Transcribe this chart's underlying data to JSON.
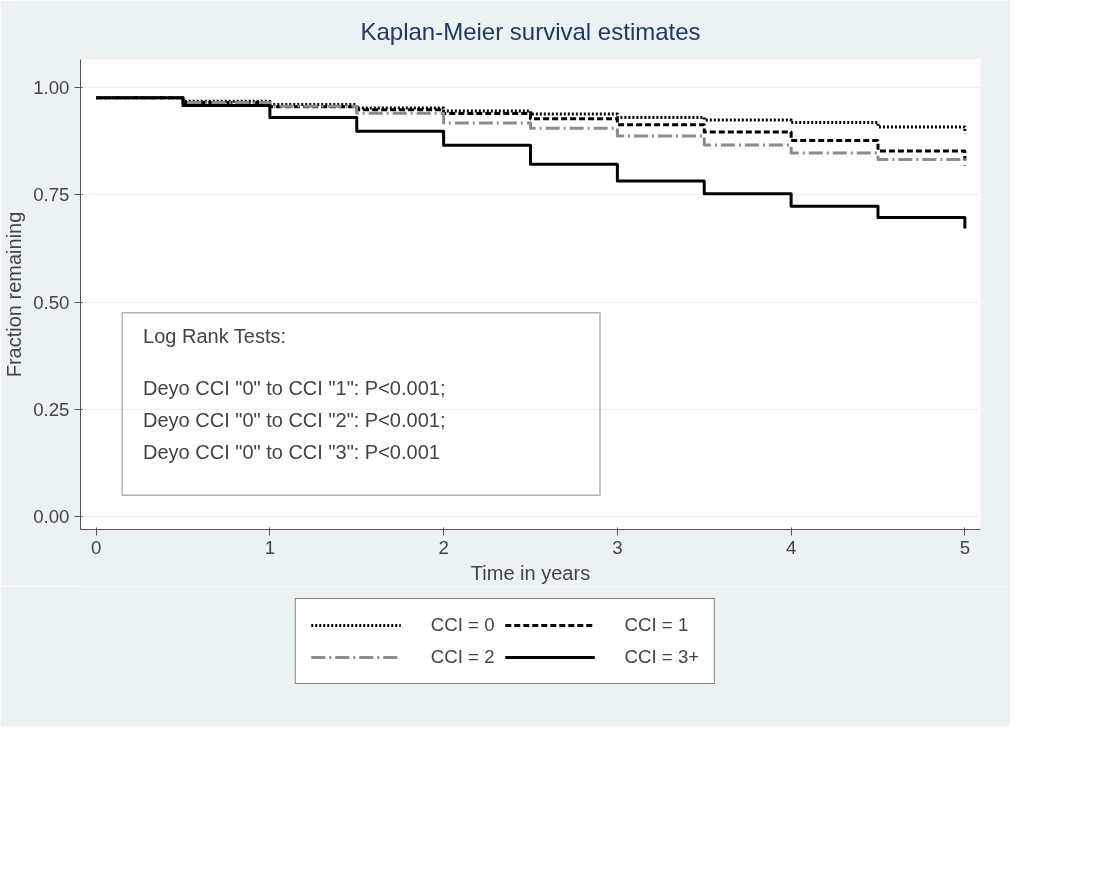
{
  "chart_data": {
    "type": "step",
    "title": "Kaplan-Meier survival estimates",
    "xlabel": "Time in years",
    "ylabel": "Fraction remaining",
    "xlim": [
      -0.09,
      5.09
    ],
    "ylim": [
      -0.03,
      1.065
    ],
    "xticks": [
      0,
      1,
      2,
      3,
      4,
      5
    ],
    "yticks": [
      {
        "value": 0,
        "label": "0.00"
      },
      {
        "value": 0.25,
        "label": "0.25"
      },
      {
        "value": 0.5,
        "label": "0.50"
      },
      {
        "value": 0.75,
        "label": "0.75"
      },
      {
        "value": 1,
        "label": "1.00"
      }
    ],
    "grid": "y",
    "legend": "bottom",
    "x": [
      0,
      0.5,
      1,
      1.5,
      2,
      2.5,
      3,
      3.5,
      4,
      4.5,
      5
    ],
    "series": [
      {
        "name": "CCI = 0",
        "color": "#000000",
        "line_style": "dotted",
        "values": [
          0.976,
          0.968,
          0.96,
          0.952,
          0.945,
          0.938,
          0.93,
          0.924,
          0.918,
          0.908,
          0.893
        ]
      },
      {
        "name": "CCI = 1",
        "color": "#000000",
        "line_style": "dashed",
        "values": [
          0.976,
          0.965,
          0.955,
          0.948,
          0.939,
          0.927,
          0.913,
          0.896,
          0.876,
          0.852,
          0.83
        ]
      },
      {
        "name": "CCI = 2",
        "color": "#8c8c8c",
        "line_style": "dashdot",
        "values": [
          0.976,
          0.965,
          0.956,
          0.94,
          0.917,
          0.905,
          0.887,
          0.866,
          0.847,
          0.832,
          0.817
        ]
      },
      {
        "name": "CCI = 3+",
        "color": "#000000",
        "line_style": "solid",
        "values": [
          0.976,
          0.958,
          0.93,
          0.898,
          0.865,
          0.821,
          0.782,
          0.752,
          0.723,
          0.697,
          0.671
        ]
      }
    ],
    "annotations": [
      "Log Rank Tests:",
      "Deyo CCI \"0\" to CCI \"1\": P<0.001;",
      "Deyo CCI \"0\" to CCI \"2\": P<0.001;",
      "Deyo CCI \"0\" to CCI \"3\": P<0.001"
    ]
  }
}
